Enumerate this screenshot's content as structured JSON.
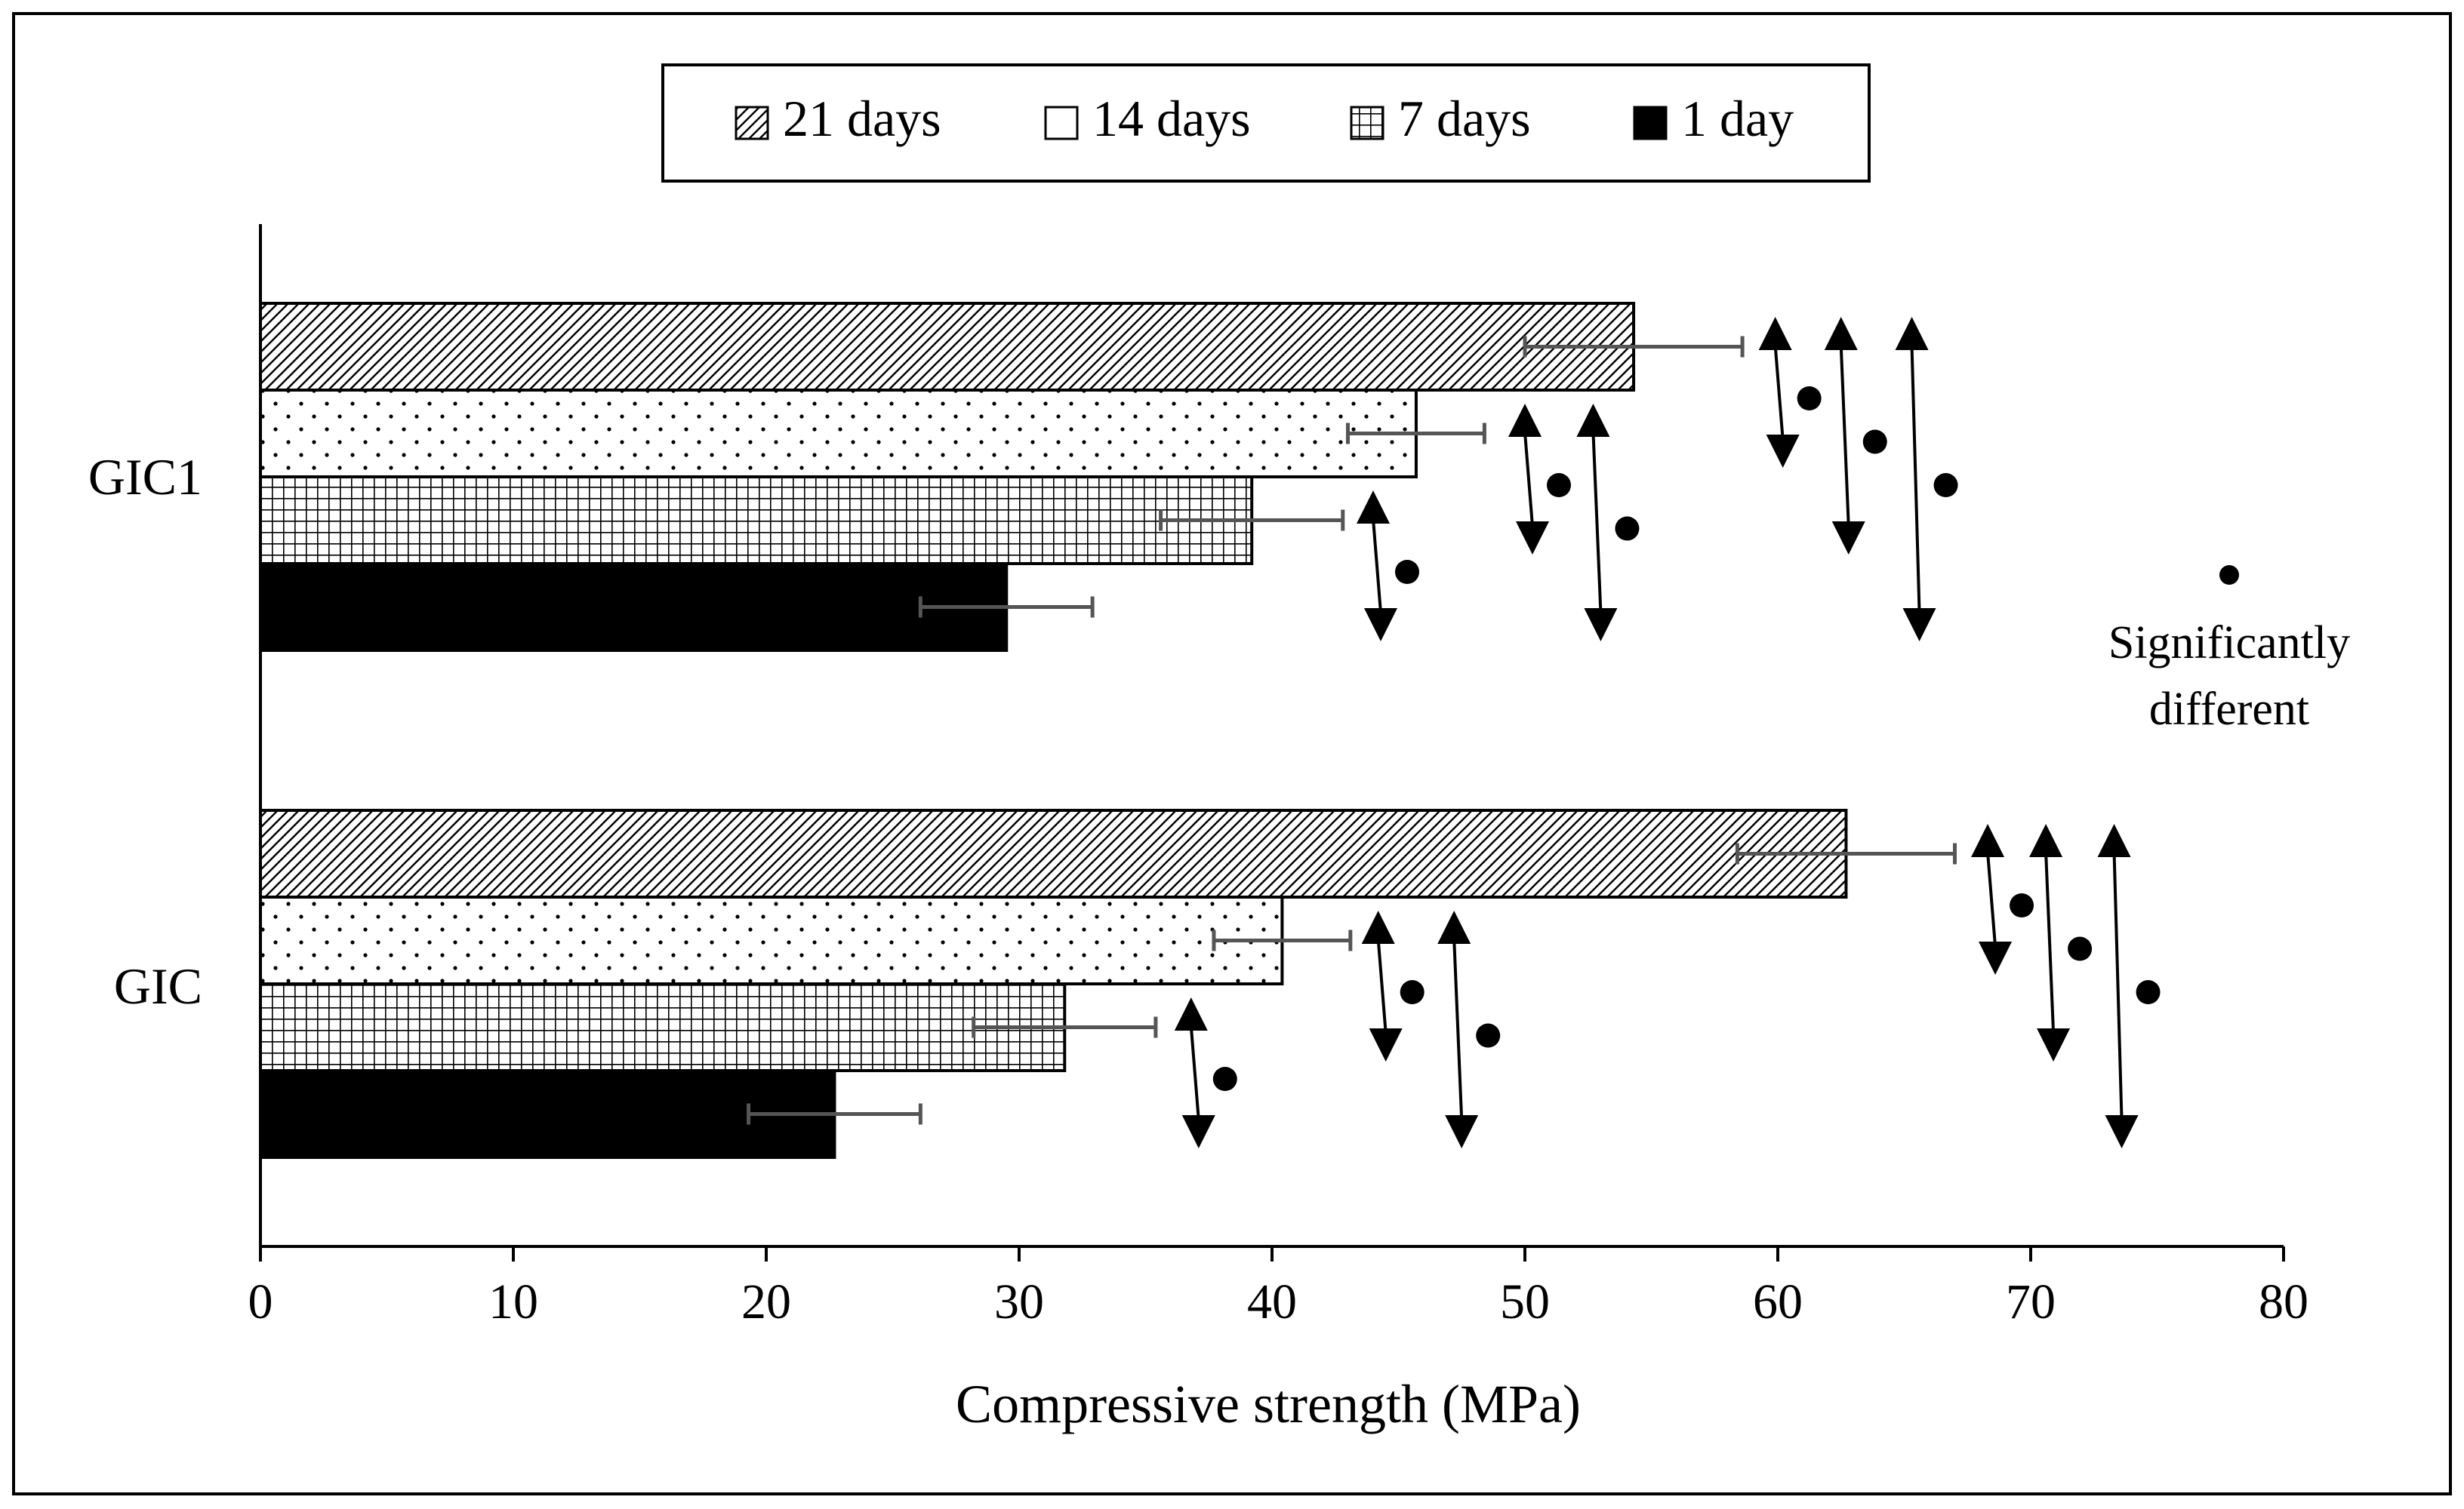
{
  "chart_data": {
    "type": "bar",
    "orientation": "horizontal",
    "title": "",
    "xlabel": "Compressive strength (MPa)",
    "ylabel": "",
    "xlim": [
      0,
      80
    ],
    "xticks": [
      0,
      10,
      20,
      30,
      40,
      50,
      60,
      70,
      80
    ],
    "grid": false,
    "legend_position": "top",
    "categories": [
      "GIC1",
      "GIC"
    ],
    "series": [
      {
        "name": "21 days",
        "pattern": "diagonal",
        "values": [
          54.3,
          62.7
        ],
        "errors": [
          4.3,
          4.3
        ]
      },
      {
        "name": "14 days",
        "pattern": "dots",
        "values": [
          45.7,
          40.4
        ],
        "errors": [
          2.7,
          2.7
        ]
      },
      {
        "name": "7 days",
        "pattern": "grid",
        "values": [
          39.2,
          31.8
        ],
        "errors": [
          3.6,
          3.6
        ]
      },
      {
        "name": "1 day",
        "pattern": "solid",
        "values": [
          29.5,
          22.7
        ],
        "errors": [
          3.4,
          3.4
        ]
      }
    ],
    "significance_annotations": {
      "legend_label": "Significantly different",
      "marker": "dot",
      "pairs": [
        {
          "category": "GIC1",
          "from": "7 days",
          "to": "1 day",
          "x": 44
        },
        {
          "category": "GIC1",
          "from": "14 days",
          "to": "7 days",
          "x": 50
        },
        {
          "category": "GIC1",
          "from": "14 days",
          "to": "1 day",
          "x": 52.7
        },
        {
          "category": "GIC1",
          "from": "21 days",
          "to": "14 days",
          "x": 59.9
        },
        {
          "category": "GIC1",
          "from": "21 days",
          "to": "7 days",
          "x": 62.5
        },
        {
          "category": "GIC1",
          "from": "21 days",
          "to": "1 day",
          "x": 65.3
        },
        {
          "category": "GIC",
          "from": "7 days",
          "to": "1 day",
          "x": 36.8
        },
        {
          "category": "GIC",
          "from": "14 days",
          "to": "7 days",
          "x": 44.2
        },
        {
          "category": "GIC",
          "from": "14 days",
          "to": "1 day",
          "x": 47.2
        },
        {
          "category": "GIC",
          "from": "21 days",
          "to": "14 days",
          "x": 68.3
        },
        {
          "category": "GIC",
          "from": "21 days",
          "to": "7 days",
          "x": 70.6
        },
        {
          "category": "GIC",
          "from": "21 days",
          "to": "1 day",
          "x": 73.3
        }
      ]
    }
  },
  "colors": {
    "bar_stroke": "#000000",
    "error_bar": "#555555",
    "background": "#ffffff"
  }
}
